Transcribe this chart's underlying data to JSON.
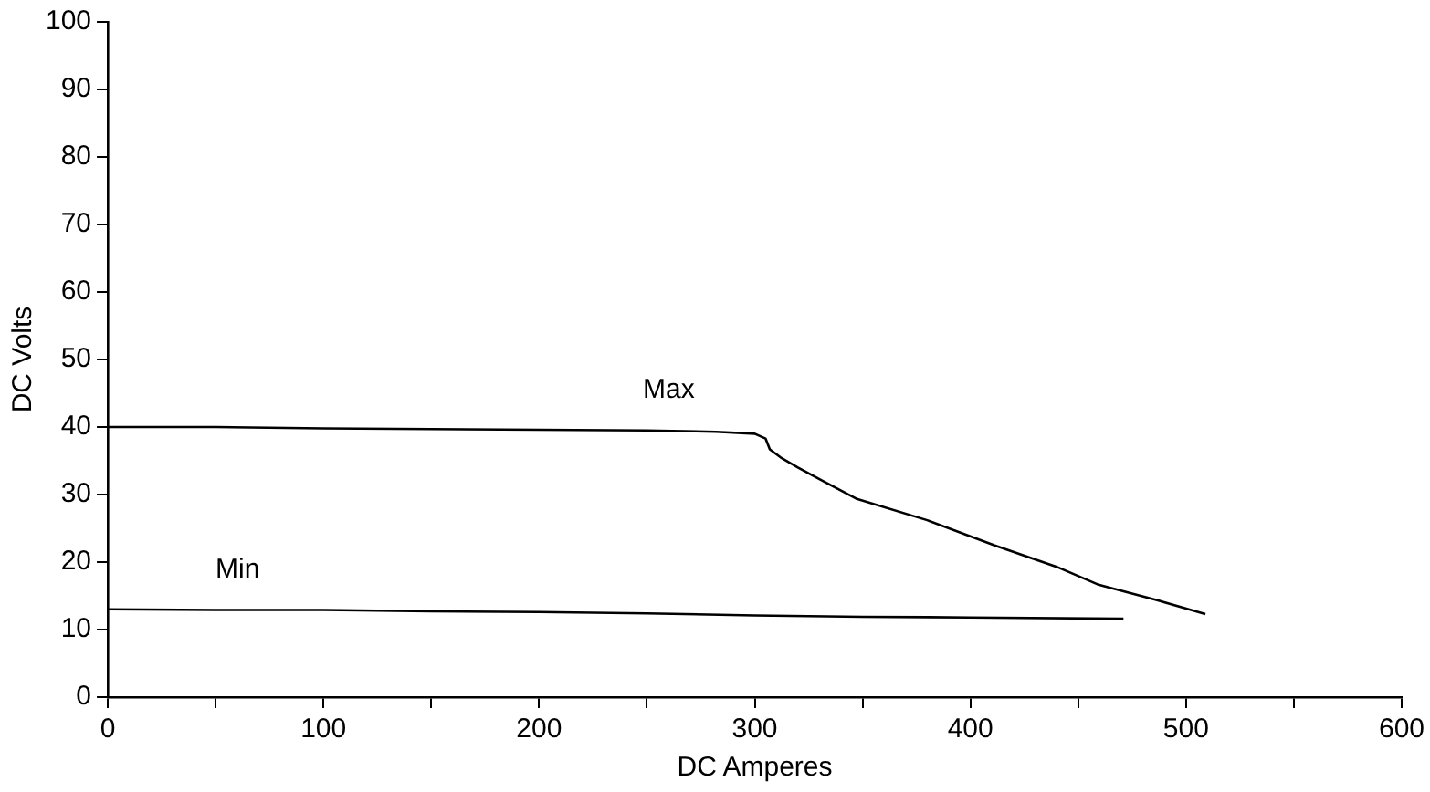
{
  "chart_data": {
    "type": "line",
    "xlabel": "DC Amperes",
    "ylabel": "DC Volts",
    "xlim": [
      0,
      600
    ],
    "ylim": [
      0,
      100
    ],
    "xticks": [
      0,
      {
        "value": 50,
        "label": null
      },
      100,
      {
        "value": 150,
        "label": null
      },
      200,
      {
        "value": 250,
        "label": null
      },
      300,
      {
        "value": 350,
        "label": null
      },
      400,
      {
        "value": 450,
        "label": null
      },
      500,
      {
        "value": 550,
        "label": null
      },
      600
    ],
    "yticks": [
      0,
      10,
      20,
      30,
      40,
      50,
      60,
      70,
      80,
      90,
      100
    ],
    "grid": false,
    "legend": false,
    "marker": "none",
    "line_style": "solid",
    "series": [
      {
        "color": "#000000",
        "x": [
          0,
          50,
          100,
          150,
          200,
          250,
          282,
          300,
          305,
          307,
          312,
          320,
          331,
          347,
          380,
          411,
          440,
          459,
          485,
          509
        ],
        "values": [
          40,
          40,
          39.8,
          39.7,
          39.6,
          39.5,
          39.3,
          39,
          38.3,
          36.7,
          35.5,
          34,
          32.1,
          29.4,
          26.2,
          22.5,
          19.3,
          16.7,
          14.5,
          12.3
        ]
      },
      {
        "color": "#000000",
        "x": [
          0,
          50,
          100,
          150,
          200,
          250,
          300,
          350,
          400,
          471
        ],
        "values": [
          13,
          12.9,
          12.9,
          12.7,
          12.6,
          12.4,
          12.1,
          11.9,
          11.8,
          11.6
        ]
      }
    ],
    "annotations": [
      {
        "text": "Max",
        "x": 250,
        "y": 39.5
      },
      {
        "text": "Min",
        "x": 50,
        "y": 12.9
      }
    ]
  }
}
